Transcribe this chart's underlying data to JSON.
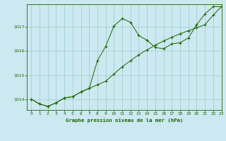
{
  "title": "Graphe pression niveau de la mer (hPa)",
  "background_color": "#cce8f0",
  "grid_color": "#99cccc",
  "line_color": "#1a6600",
  "marker_color": "#1a6600",
  "xlim": [
    -0.5,
    23
  ],
  "ylim": [
    1013.55,
    1017.95
  ],
  "xticks": [
    0,
    1,
    2,
    3,
    4,
    5,
    6,
    7,
    8,
    9,
    10,
    11,
    12,
    13,
    14,
    15,
    16,
    17,
    18,
    19,
    20,
    21,
    22,
    23
  ],
  "yticks": [
    1014,
    1015,
    1016,
    1017
  ],
  "series1_x": [
    0,
    1,
    2,
    3,
    4,
    5,
    6,
    7,
    8,
    9,
    10,
    11,
    12,
    13,
    14,
    15,
    16,
    17,
    18,
    19,
    20,
    21,
    22,
    23
  ],
  "series1_y": [
    1014.0,
    1013.8,
    1013.7,
    1013.85,
    1014.05,
    1014.1,
    1014.3,
    1014.45,
    1015.6,
    1016.2,
    1017.05,
    1017.35,
    1017.2,
    1016.65,
    1016.45,
    1016.15,
    1016.1,
    1016.3,
    1016.35,
    1016.55,
    1017.1,
    1017.55,
    1017.85,
    1017.85
  ],
  "series2_x": [
    0,
    1,
    2,
    3,
    4,
    5,
    6,
    7,
    8,
    9,
    10,
    11,
    12,
    13,
    14,
    15,
    16,
    17,
    18,
    19,
    20,
    21,
    22,
    23
  ],
  "series2_y": [
    1014.0,
    1013.8,
    1013.7,
    1013.85,
    1014.05,
    1014.1,
    1014.3,
    1014.45,
    1014.6,
    1014.75,
    1015.05,
    1015.35,
    1015.6,
    1015.85,
    1016.05,
    1016.25,
    1016.42,
    1016.58,
    1016.72,
    1016.85,
    1016.97,
    1017.1,
    1017.5,
    1017.85
  ]
}
